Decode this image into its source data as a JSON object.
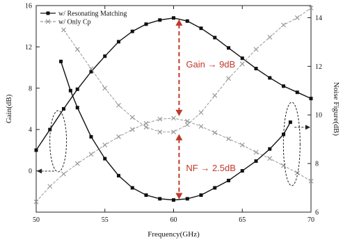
{
  "chart_data": {
    "type": "line",
    "xlabel": "Frequency(GHz)",
    "ylabel": "Gain(dB)",
    "y2label": "Noise Figure(dB)",
    "xlim": [
      50,
      70
    ],
    "ylim": [
      -4,
      16
    ],
    "y2lim": [
      6,
      14.5
    ],
    "x_ticks": [
      "50",
      "55",
      "60",
      "65",
      "70"
    ],
    "y_ticks": [
      "0",
      "4",
      "8",
      "12",
      "16"
    ],
    "y2_ticks": [
      "6",
      "8",
      "10",
      "12",
      "14"
    ],
    "grid": false,
    "legend_position": "top-left",
    "series": [
      {
        "name": "w/ Resonating Matching",
        "quantity": "Gain",
        "axis": "left",
        "color": "#111111",
        "marker": "square",
        "x": [
          50,
          51,
          52,
          53,
          54,
          55,
          56,
          57,
          58,
          59,
          60,
          61,
          62,
          63,
          64,
          65,
          66,
          67,
          68,
          69,
          70
        ],
        "y": [
          2.0,
          4.0,
          6.0,
          7.9,
          9.6,
          11.1,
          12.5,
          13.5,
          14.2,
          14.6,
          14.8,
          14.5,
          13.8,
          12.9,
          11.9,
          10.9,
          9.9,
          9.0,
          8.2,
          7.6,
          7.0
        ]
      },
      {
        "name": "w/ Only Cp",
        "quantity": "Gain",
        "axis": "left",
        "color": "#999999",
        "marker": "x",
        "x": [
          50,
          51,
          52,
          53,
          54,
          55,
          56,
          57,
          58,
          59,
          60,
          61,
          62,
          63,
          64,
          65,
          66,
          67,
          68,
          69,
          70
        ],
        "y": [
          -3.0,
          -1.5,
          -0.3,
          0.7,
          1.6,
          2.5,
          3.3,
          4.0,
          4.6,
          5.0,
          5.1,
          4.8,
          4.3,
          3.7,
          3.1,
          2.5,
          1.8,
          1.2,
          0.5,
          -0.2,
          -1.0
        ]
      },
      {
        "name": "w/ Resonating Matching",
        "quantity": "NF",
        "axis": "right",
        "color": "#111111",
        "marker": "square",
        "x": [
          51.8,
          52.5,
          53,
          54,
          55,
          56,
          57,
          58,
          59,
          60,
          61,
          62,
          63,
          64,
          65,
          66,
          67,
          68,
          68.5
        ],
        "y": [
          12.2,
          11.0,
          10.3,
          9.1,
          8.2,
          7.5,
          7.0,
          6.7,
          6.55,
          6.5,
          6.55,
          6.7,
          7.0,
          7.3,
          7.7,
          8.1,
          8.6,
          9.2,
          9.7
        ]
      },
      {
        "name": "w/ Only Cp",
        "quantity": "NF",
        "axis": "right",
        "color": "#999999",
        "marker": "x",
        "x": [
          52,
          53,
          54,
          55,
          56,
          57,
          58,
          59,
          60,
          61,
          62,
          63,
          64,
          65,
          66,
          67,
          68,
          69,
          70
        ],
        "y": [
          13.5,
          12.7,
          11.9,
          11.1,
          10.4,
          9.9,
          9.5,
          9.3,
          9.3,
          9.6,
          10.1,
          10.8,
          11.5,
          12.1,
          12.7,
          13.2,
          13.7,
          14.0,
          14.4
        ]
      }
    ],
    "annotations": [
      {
        "text": "Gain → 9dB"
      },
      {
        "text": "NF → 2.5dB"
      }
    ]
  }
}
